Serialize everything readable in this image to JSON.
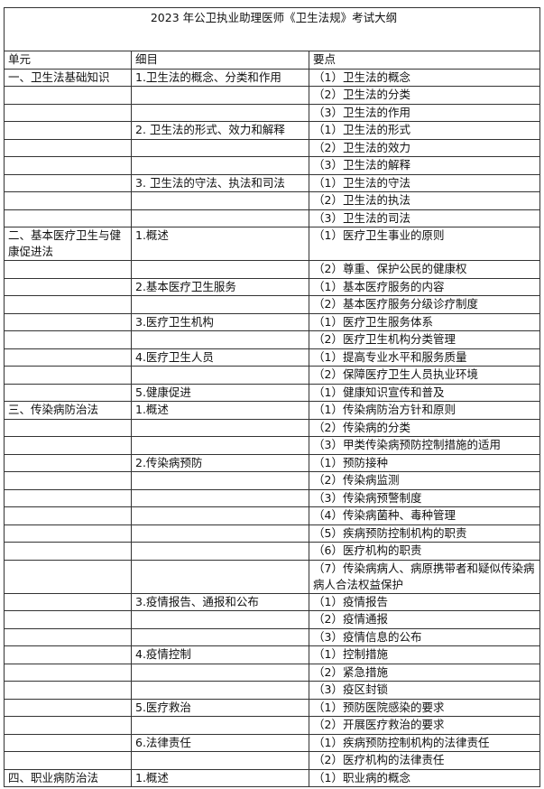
{
  "title": "2023 年公卫执业助理医师《卫生法规》考试大纲",
  "headers": [
    "单元",
    "细目",
    "要点"
  ],
  "rows": [
    [
      "一、卫生法基础知识",
      "1.卫生法的概念、分类和作用",
      "（1）卫生法的概念"
    ],
    [
      "",
      "",
      "（2）卫生法的分类"
    ],
    [
      "",
      "",
      "（3）卫生法的作用"
    ],
    [
      "",
      "2. 卫生法的形式、效力和解释",
      "（1）卫生法的形式"
    ],
    [
      "",
      "",
      "（2）卫生法的效力"
    ],
    [
      "",
      "",
      "（3）卫生法的解释"
    ],
    [
      "",
      "3. 卫生法的守法、执法和司法",
      "（1）卫生法的守法"
    ],
    [
      "",
      "",
      "（2）卫生法的执法"
    ],
    [
      "",
      "",
      "（3）卫生法的司法"
    ],
    [
      "二、基本医疗卫生与健康促进法",
      "1.概述",
      "（1）医疗卫生事业的原则"
    ],
    [
      "",
      "",
      "（2）尊重、保护公民的健康权"
    ],
    [
      "",
      "2.基本医疗卫生服务",
      "（1）基本医疗服务的内容"
    ],
    [
      "",
      "",
      "（2）基本医疗服务分级诊疗制度"
    ],
    [
      "",
      "3.医疗卫生机构",
      "（1）医疗卫生服务体系"
    ],
    [
      "",
      "",
      "（2）医疗卫生机构分类管理"
    ],
    [
      "",
      "4.医疗卫生人员",
      "（1）提高专业水平和服务质量"
    ],
    [
      "",
      "",
      "（2）保障医疗卫生人员执业环境"
    ],
    [
      "",
      "5.健康促进",
      "（1）健康知识宣传和普及"
    ],
    [
      "三、传染病防治法",
      "1.概述",
      "（1）传染病防治方针和原则"
    ],
    [
      "",
      "",
      "（2）传染病的分类"
    ],
    [
      "",
      "",
      "（3）甲类传染病预防控制措施的适用"
    ],
    [
      "",
      "2.传染病预防",
      "（1）预防接种"
    ],
    [
      "",
      "",
      "（2）传染病监测"
    ],
    [
      "",
      "",
      "（3）传染病预警制度"
    ],
    [
      "",
      "",
      "（4）传染病菌种、毒种管理"
    ],
    [
      "",
      "",
      "（5）疾病预防控制机构的职责"
    ],
    [
      "",
      "",
      "（6）医疗机构的职责"
    ],
    [
      "",
      "",
      "（7）传染病病人、病原携带者和疑似传染病病人合法权益保护"
    ],
    [
      "",
      "3.疫情报告、通报和公布",
      "（1）疫情报告"
    ],
    [
      "",
      "",
      "（2）疫情通报"
    ],
    [
      "",
      "",
      "（3）疫情信息的公布"
    ],
    [
      "",
      "4.疫情控制",
      "（1）控制措施"
    ],
    [
      "",
      "",
      "（2）紧急措施"
    ],
    [
      "",
      "",
      "（3）疫区封锁"
    ],
    [
      "",
      "5.医疗救治",
      "（1）预防医院感染的要求"
    ],
    [
      "",
      "",
      "（2）开展医疗救治的要求"
    ],
    [
      "",
      "6.法律责任",
      "（1）疾病预防控制机构的法律责任"
    ],
    [
      "",
      "",
      "（2）医疗机构的法律责任"
    ],
    [
      "四、职业病防治法",
      "1.概述",
      "（1）职业病的概念"
    ]
  ]
}
